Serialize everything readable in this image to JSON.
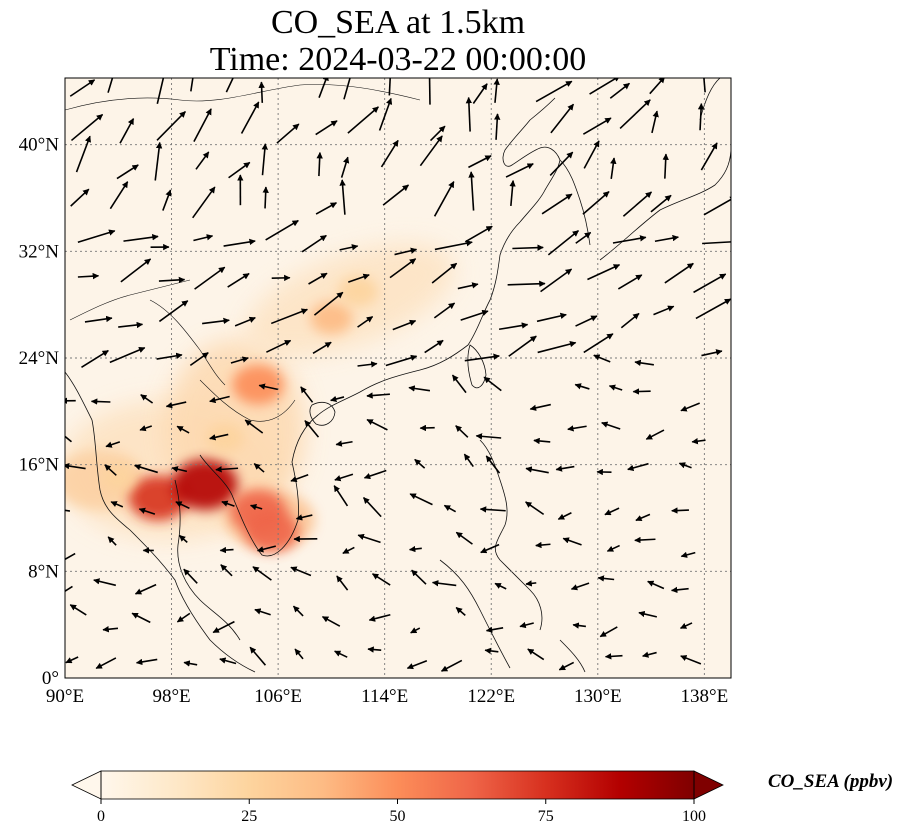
{
  "title": {
    "line1": "CO_SEA at 1.5km",
    "line2": "Time: 2024-03-22 00:00:00"
  },
  "map": {
    "type": "map",
    "projection": "PlateCarree",
    "lon_range": [
      90,
      140
    ],
    "lat_range": [
      0,
      45
    ],
    "x_ticks": [
      {
        "value": 90,
        "label": "90°E"
      },
      {
        "value": 98,
        "label": "98°E"
      },
      {
        "value": 106,
        "label": "106°E"
      },
      {
        "value": 114,
        "label": "114°E"
      },
      {
        "value": 122,
        "label": "122°E"
      },
      {
        "value": 130,
        "label": "130°E"
      },
      {
        "value": 138,
        "label": "138°E"
      }
    ],
    "y_ticks": [
      {
        "value": 0,
        "label": "0°"
      },
      {
        "value": 8,
        "label": "8°N"
      },
      {
        "value": 16,
        "label": "16°N"
      },
      {
        "value": 24,
        "label": "24°N"
      },
      {
        "value": 32,
        "label": "32°N"
      },
      {
        "value": 40,
        "label": "40°N"
      }
    ],
    "gridlines": true,
    "wind_vectors": true,
    "hotspots": [
      {
        "lon": 97,
        "lat": 13.5,
        "value": 70
      },
      {
        "lon": 100.5,
        "lat": 14.5,
        "value": 85
      },
      {
        "lon": 104.5,
        "lat": 12.5,
        "value": 65
      },
      {
        "lon": 105.5,
        "lat": 11,
        "value": 60
      },
      {
        "lon": 104.5,
        "lat": 22,
        "value": 55
      },
      {
        "lon": 110,
        "lat": 27,
        "value": 35
      },
      {
        "lon": 112,
        "lat": 29,
        "value": 30
      },
      {
        "lon": 102,
        "lat": 18,
        "value": 25
      },
      {
        "lon": 94,
        "lat": 15,
        "value": 20
      }
    ]
  },
  "colorbar": {
    "label": "CO_SEA (ppbv)",
    "min": 0,
    "max": 100,
    "extend": "both",
    "ticks": [
      {
        "value": 0,
        "label": "0"
      },
      {
        "value": 25,
        "label": "25"
      },
      {
        "value": 50,
        "label": "50"
      },
      {
        "value": 75,
        "label": "75"
      },
      {
        "value": 100,
        "label": "100"
      }
    ],
    "colormap": [
      "#fff7ec",
      "#fee8c8",
      "#fdd49e",
      "#fdbb84",
      "#fc8d59",
      "#ef6548",
      "#d7301f",
      "#b30000",
      "#7f0000"
    ]
  }
}
